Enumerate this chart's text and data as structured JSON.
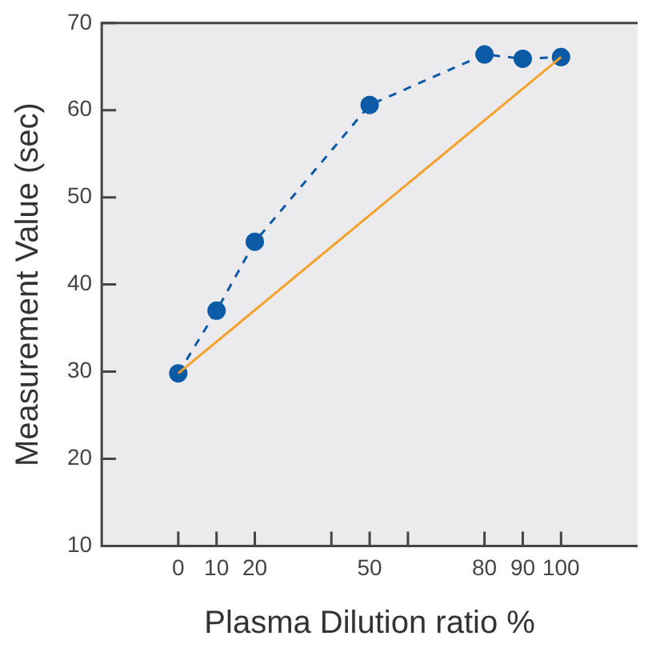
{
  "chart_data": {
    "type": "line",
    "xlabel": "Plasma Dilution ratio %",
    "ylabel": "Measurement Value (sec)",
    "xlim": [
      -20,
      120
    ],
    "ylim": [
      10,
      70
    ],
    "xticks": [
      0,
      10,
      20,
      {
        "value": 40,
        "label": null
      },
      50,
      {
        "value": 60,
        "label": null
      },
      80,
      90,
      100
    ],
    "yticks": [
      10,
      20,
      30,
      40,
      50,
      60,
      70
    ],
    "grid": false,
    "legend": false,
    "series": [
      {
        "color": "#0b5aa6",
        "x": [
          0,
          10,
          20,
          50,
          80,
          90,
          100
        ],
        "values": [
          29.8,
          37,
          44.9,
          60.6,
          66.4,
          65.9,
          66.1
        ],
        "marker": "circle",
        "line_style": "dashed"
      },
      {
        "color": "#f5a12c",
        "x": [
          0,
          100
        ],
        "values": [
          29.8,
          66.1
        ],
        "marker": "none",
        "line_style": "solid"
      }
    ]
  }
}
